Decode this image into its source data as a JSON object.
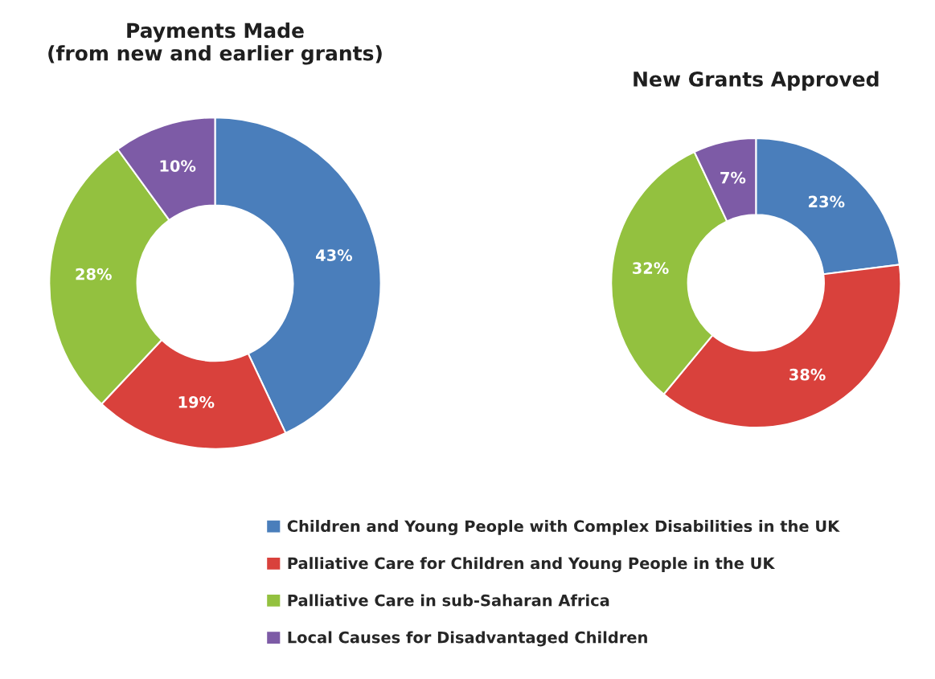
{
  "chart_data": [
    {
      "type": "donut",
      "title": "Payments Made\n(from new and earlier grants)",
      "categories": [
        "Children and Young People with Complex Disabilities in the UK",
        "Palliative Care for Children and Young People in the UK",
        "Palliative Care in sub-Saharan Africa",
        "Local Causes for Disadvantaged Children"
      ],
      "values": [
        43,
        19,
        28,
        10
      ],
      "colors": [
        "#4a7ebb",
        "#d9413c",
        "#93c13f",
        "#7d5ba6"
      ],
      "value_labels": [
        "43%",
        "19%",
        "28%",
        "10%"
      ],
      "legend": "bottom"
    },
    {
      "type": "donut",
      "title": "New Grants Approved",
      "categories": [
        null,
        null,
        null,
        null
      ],
      "values": [
        23,
        38,
        32,
        7
      ],
      "colors": [
        "#4a7ebb",
        "#d9413c",
        "#93c13f",
        "#7d5ba6"
      ],
      "value_labels": [
        "23%",
        "38%",
        "32%",
        "7%"
      ]
    }
  ]
}
